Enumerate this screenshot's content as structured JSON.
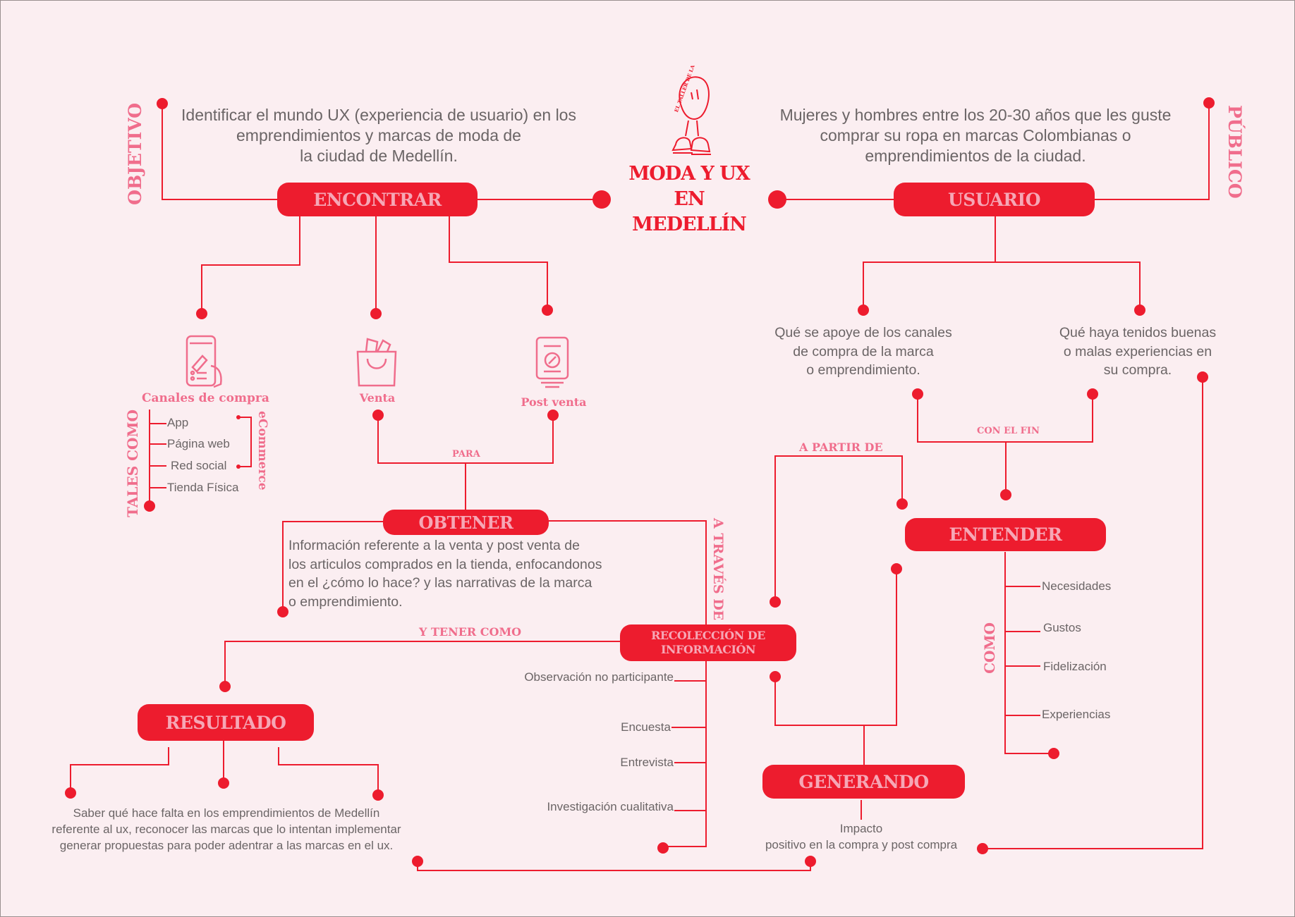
{
  "center": {
    "logo_text": "EL TALLER DE LA PAP",
    "title_line1": "MODA Y UX",
    "title_line2": "EN MEDELLÍN"
  },
  "objetivo": {
    "label": "OBJETIVO",
    "text_lines": [
      "Identificar el mundo UX (experiencia de usuario) en los",
      "emprendimientos y marcas de moda de",
      "la ciudad de Medellín."
    ]
  },
  "publico": {
    "label": "PÚBLICO",
    "text_lines": [
      "Mujeres y hombres entre los 20-30 años que les guste",
      "comprar su ropa en marcas Colombianas o",
      "emprendimientos de la ciudad."
    ]
  },
  "nodes": {
    "encontrar": "ENCONTRAR",
    "usuario": "USUARIO",
    "obtener": "OBTENER",
    "entender": "ENTENDER",
    "recoleccion_line1": "RECOLECCIÓN DE",
    "recoleccion_line2": "INFORMACIÓN",
    "resultado": "RESULTADO",
    "generando": "GENERANDO"
  },
  "encontrar_branches": {
    "canales": "Canales de compra",
    "venta": "Venta",
    "post_venta": "Post venta"
  },
  "tales_como": {
    "label": "TALES COMO",
    "items": [
      "App",
      "Página web",
      "Red social",
      "Tienda Física"
    ],
    "ecommerce_label": "eCommerce"
  },
  "connectors": {
    "para": "PARA",
    "a_traves_de": "A TRAVÉS DE",
    "y_tener_como": "Y TENER COMO",
    "a_partir_de": "A PARTIR DE",
    "con_el_fin": "CON EL FIN",
    "como": "COMO"
  },
  "obtener_text_lines": [
    "Información referente a la venta y post venta de",
    "los articulos comprados en la tienda, enfocandonos",
    "en el ¿cómo lo hace? y las narrativas de la marca",
    "o emprendimiento."
  ],
  "usuario_branches": {
    "left_lines": [
      "Qué se apoye de los canales",
      "de compra de la marca",
      "o emprendimiento."
    ],
    "right_lines": [
      "Qué haya tenidos buenas",
      "o malas experiencias en",
      "su compra."
    ]
  },
  "entender_items": [
    "Necesidades",
    "Gustos",
    "Fidelización",
    "Experiencias"
  ],
  "methods": [
    "Observación no participante",
    "Encuesta",
    "Entrevista",
    "Investigación cualitativa"
  ],
  "resultado_text_lines": [
    "Saber qué hace falta en los emprendimientos de Medellín",
    "referente al ux, reconocer las marcas que lo intentan implementar",
    "generar propuestas para poder adentrar a las marcas en el ux."
  ],
  "generando_text_lines": [
    "Impacto",
    "positivo en la compra y post compra"
  ],
  "colors": {
    "accent": "#ed1c2e",
    "pill_text": "#f6a7b6",
    "label_pink": "#f06d8c",
    "body_text": "#6b6566",
    "background": "#fbeef1"
  }
}
